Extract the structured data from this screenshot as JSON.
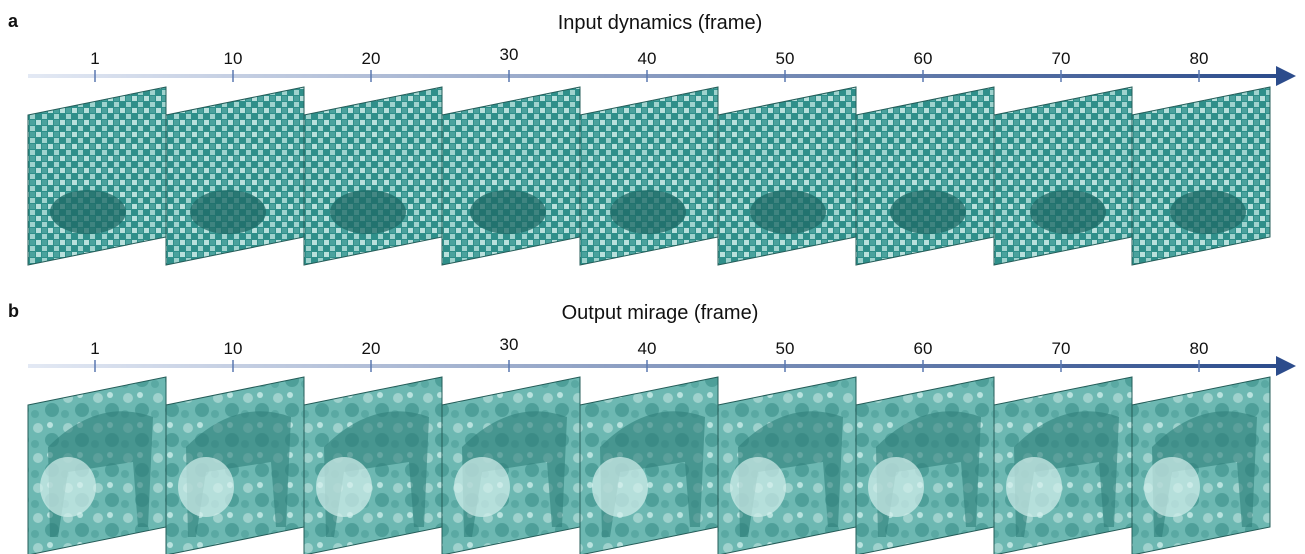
{
  "panels": [
    {
      "label": "a",
      "title": "Input dynamics (frame)",
      "ticks": [
        1,
        10,
        20,
        30,
        40,
        50,
        60,
        70,
        80
      ]
    },
    {
      "label": "b",
      "title": "Output mirage (frame)",
      "ticks": [
        1,
        10,
        20,
        30,
        40,
        50,
        60,
        70,
        80
      ]
    }
  ]
}
